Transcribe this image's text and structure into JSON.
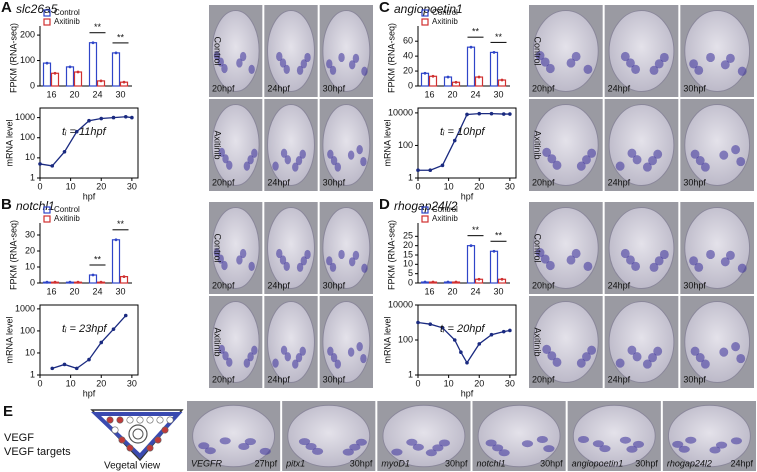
{
  "panels": [
    {
      "letter": "A",
      "gene": "slc26a5",
      "bar_chart": {
        "type": "bar",
        "ylabel": "FPKM (RNA-seq)",
        "categories": [
          16,
          20,
          24,
          30
        ],
        "series": [
          {
            "name": "Control",
            "color": "#2f45c8",
            "values": [
              90,
              75,
              170,
              130
            ]
          },
          {
            "name": "Axitinib",
            "color": "#d03030",
            "values": [
              50,
              55,
              20,
              15
            ]
          }
        ],
        "ylim": [
          0,
          220
        ],
        "yticks": [
          0,
          100,
          200
        ],
        "significance": [
          "**",
          "**"
        ]
      },
      "line_chart": {
        "type": "line",
        "ylabel": "mRNA level",
        "xlabel": "hpf",
        "color": "#1a2a80",
        "x": [
          0,
          4,
          8,
          12,
          16,
          20,
          24,
          28,
          30
        ],
        "values": [
          5,
          4,
          20,
          200,
          700,
          900,
          1000,
          1100,
          1000
        ],
        "xlim": [
          0,
          32
        ],
        "xticks": [
          0,
          10,
          20,
          30
        ],
        "ylim": [
          1,
          3000
        ],
        "yticks": [
          1,
          10,
          100,
          1000
        ],
        "log_scale": true,
        "annotation": "tᵢ = 11hpf"
      },
      "images": {
        "rows": [
          "Control",
          "Axitinib"
        ],
        "times": [
          "20hpf",
          "24hpf",
          "30hpf"
        ]
      }
    },
    {
      "letter": "B",
      "gene": "notchl1",
      "bar_chart": {
        "type": "bar",
        "ylabel": "FPKM (RNA-seq)",
        "categories": [
          16,
          20,
          24,
          30
        ],
        "series": [
          {
            "name": "Control",
            "color": "#2f45c8",
            "values": [
              0.5,
              0.5,
              5,
              27
            ]
          },
          {
            "name": "Axitinib",
            "color": "#d03030",
            "values": [
              0.5,
              0.5,
              0.5,
              4
            ]
          }
        ],
        "ylim": [
          0,
          35
        ],
        "yticks": [
          0,
          10,
          20,
          30
        ],
        "significance": [
          "**",
          "**"
        ]
      },
      "line_chart": {
        "type": "line",
        "ylabel": "mRNA level",
        "xlabel": "hpf",
        "color": "#1a2a80",
        "x": [
          4,
          8,
          12,
          16,
          20,
          24,
          28
        ],
        "values": [
          2,
          3,
          2,
          5,
          30,
          120,
          500
        ],
        "xlim": [
          0,
          32
        ],
        "xticks": [
          0,
          10,
          20,
          30
        ],
        "ylim": [
          1,
          1500
        ],
        "yticks": [
          1,
          10,
          100,
          1000
        ],
        "log_scale": true,
        "annotation": "tᵢ = 23hpf"
      },
      "images": {
        "rows": [
          "Control",
          "Axitinib"
        ],
        "times": [
          "20hpf",
          "24hpf",
          "30hpf"
        ]
      }
    },
    {
      "letter": "C",
      "gene": "angiopoetin1",
      "bar_chart": {
        "type": "bar",
        "ylabel": "FPKM (RNA-seq)",
        "categories": [
          16,
          20,
          24,
          30
        ],
        "series": [
          {
            "name": "Control",
            "color": "#2f45c8",
            "values": [
              17,
              12,
              52,
              45
            ]
          },
          {
            "name": "Axitinib",
            "color": "#d03030",
            "values": [
              13,
              5,
              12,
              8
            ]
          }
        ],
        "ylim": [
          0,
          75
        ],
        "yticks": [
          0,
          20,
          40,
          60
        ],
        "significance": [
          "**",
          "**"
        ]
      },
      "line_chart": {
        "type": "line",
        "ylabel": "mRNA level",
        "xlabel": "hpf",
        "color": "#1a2a80",
        "x": [
          0,
          4,
          8,
          12,
          16,
          20,
          24,
          28,
          30
        ],
        "values": [
          3,
          3,
          6,
          200,
          8000,
          9000,
          9000,
          8500,
          8500
        ],
        "xlim": [
          0,
          32
        ],
        "xticks": [
          0,
          10,
          20,
          30
        ],
        "ylim": [
          1,
          20000
        ],
        "yticks": [
          1,
          100,
          10000
        ],
        "log_scale": true,
        "annotation": "tᵢ = 10hpf"
      },
      "images": {
        "rows": [
          "Control",
          "Axitinib"
        ],
        "times": [
          "20hpf",
          "24hpf",
          "30hpf"
        ]
      }
    },
    {
      "letter": "D",
      "gene": "rhogap24l/2",
      "bar_chart": {
        "type": "bar",
        "ylabel": "FPKM (RNA-seq)",
        "categories": [
          16,
          20,
          24,
          30
        ],
        "series": [
          {
            "name": "Control",
            "color": "#2f45c8",
            "values": [
              0.5,
              0.5,
              20,
              17
            ]
          },
          {
            "name": "Axitinib",
            "color": "#d03030",
            "values": [
              0.5,
              0.5,
              2,
              2
            ]
          }
        ],
        "ylim": [
          0,
          30
        ],
        "yticks": [
          0,
          5,
          10,
          15,
          20,
          25
        ],
        "significance": [
          "**",
          "**"
        ]
      },
      "line_chart": {
        "type": "line",
        "ylabel": "mRNA level",
        "xlabel": "hpf",
        "color": "#1a2a80",
        "x": [
          0,
          4,
          8,
          12,
          14,
          16,
          20,
          24,
          28,
          30
        ],
        "values": [
          1000,
          800,
          500,
          100,
          20,
          5,
          60,
          200,
          300,
          350
        ],
        "xlim": [
          0,
          32
        ],
        "xticks": [
          0,
          10,
          20,
          30
        ],
        "ylim": [
          1,
          10000
        ],
        "yticks": [
          1,
          100,
          10000
        ],
        "log_scale": true,
        "annotation": "tᵢ = 20hpf"
      },
      "images": {
        "rows": [
          "Control",
          "Axitinib"
        ],
        "times": [
          "20hpf",
          "24hpf",
          "30hpf"
        ]
      }
    }
  ],
  "panel_e": {
    "letter": "E",
    "legend": [
      "VEGF",
      "VEGF targets"
    ],
    "caption": "Vegetal view",
    "images": [
      {
        "gene": "VEGFR",
        "time": "27hpf"
      },
      {
        "gene": "pitx1",
        "time": "30hpf"
      },
      {
        "gene": "myoD1",
        "time": "30hpf"
      },
      {
        "gene": "notchl1",
        "time": "30hpf"
      },
      {
        "gene": "angiopoetin1",
        "time": "30hpf"
      },
      {
        "gene": "rhogap24l2",
        "time": "24hpf"
      }
    ]
  }
}
